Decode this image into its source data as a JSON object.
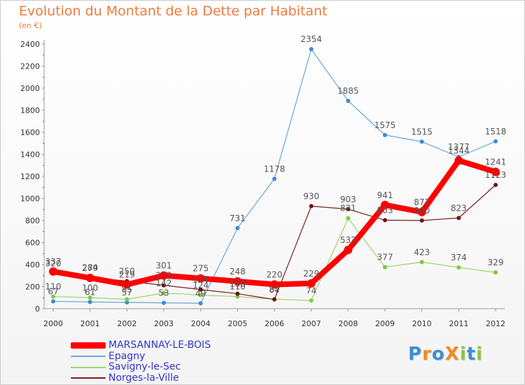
{
  "title": "Evolution du Montant de la Dette par Habitant",
  "unit": "(en €)",
  "logo": {
    "text": "ProXiti",
    "letters": [
      {
        "ch": "P",
        "color": "#3a8fd6"
      },
      {
        "ch": "r",
        "color": "#f28a1e"
      },
      {
        "ch": "o",
        "color": "#3a8fd6"
      },
      {
        "ch": "X",
        "color": "#f28a1e"
      },
      {
        "ch": "i",
        "color": "#8cc63f"
      },
      {
        "ch": "t",
        "color": "#3a8fd6"
      },
      {
        "ch": "i",
        "color": "#8cc63f"
      }
    ]
  },
  "chart_data": {
    "type": "line",
    "title": "Evolution du Montant de la Dette par Habitant",
    "subtitle": "(en €)",
    "xlabel": "",
    "ylabel": "",
    "x": [
      "2000",
      "2001",
      "2002",
      "2003",
      "2004",
      "2005",
      "2006",
      "2007",
      "2008",
      "2009",
      "2010",
      "2011",
      "2012"
    ],
    "yticks": [
      "0",
      "200",
      "400",
      "600",
      "800",
      "1000",
      "1200",
      "1400",
      "1600",
      "1800",
      "2000",
      "2200",
      "2400"
    ],
    "ylim": [
      0,
      2400
    ],
    "grid": false,
    "legend_position": "bottom-left",
    "series": [
      {
        "name": "MARSANNAY-LE-BOIS",
        "color": "#ff0000",
        "point_color": "#ff0000",
        "legend_color": "#3333cc",
        "width": 8,
        "values": [
          337,
          279,
          219,
          301,
          275,
          248,
          220,
          229,
          533,
          941,
          877,
          1344,
          1241
        ],
        "labels": [
          "337",
          "279",
          "219",
          "301",
          "275",
          "248",
          "220",
          "229",
          "533",
          "941",
          "877",
          "1344",
          "1241"
        ]
      },
      {
        "name": "Epagny",
        "color": "#6aa6d6",
        "point_color": "#3b8ad6",
        "legend_color": "#3333cc",
        "width": 1.2,
        "values": [
          67,
          61,
          57,
          53,
          49,
          731,
          1178,
          2354,
          1885,
          1575,
          1515,
          1377,
          1518
        ],
        "labels": [
          "67",
          "61",
          "57",
          "53",
          "49",
          "731",
          "1178",
          "2354",
          "1885",
          "1575",
          "1515",
          "1377",
          "1518"
        ]
      },
      {
        "name": "Savigny-le-Sec",
        "color": "#9bd66a",
        "point_color": "#7acc3a",
        "legend_color": "#3333cc",
        "width": 1.2,
        "values": [
          110,
          100,
          85,
          142,
          124,
          110,
          87,
          74,
          821,
          377,
          423,
          374,
          329
        ],
        "labels": [
          "110",
          "100",
          "85",
          "142",
          "124",
          "110",
          "87",
          "74",
          "821",
          "377",
          "423",
          "374",
          "329"
        ]
      },
      {
        "name": "Norges-la-Ville",
        "color": "#7a1f1f",
        "point_color": "#6a1515",
        "legend_color": "#3333cc",
        "width": 1.2,
        "values": [
          320,
          284,
          250,
          212,
          174,
          136,
          84,
          930,
          903,
          803,
          800,
          823,
          1123
        ],
        "labels": [
          "320",
          "284",
          "250",
          "212",
          "174",
          "136",
          "84",
          "930",
          "903",
          "803",
          "800",
          "823",
          "1123"
        ]
      }
    ]
  }
}
